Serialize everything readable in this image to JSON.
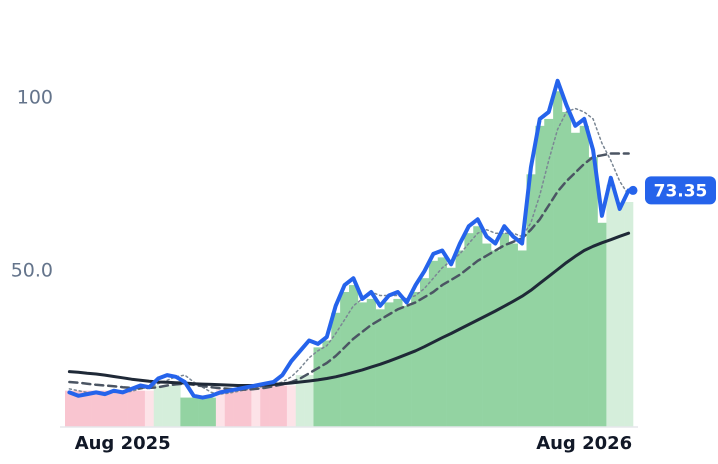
{
  "chart_data": {
    "type": "line",
    "categories": [
      null,
      null,
      null,
      null,
      null,
      null,
      "Aug 2025",
      null,
      null,
      null,
      null,
      null,
      null,
      null,
      null,
      null,
      null,
      null,
      null,
      null,
      null,
      null,
      null,
      null,
      null,
      null,
      null,
      null,
      null,
      null,
      null,
      null,
      null,
      null,
      null,
      null,
      null,
      null,
      null,
      null,
      null,
      null,
      null,
      null,
      null,
      null,
      null,
      null,
      null,
      null,
      null,
      null,
      null,
      null,
      null,
      null,
      null,
      null,
      "Aug 2026",
      null,
      null,
      null,
      null,
      null
    ],
    "ylim": [
      5,
      122
    ],
    "yticks": [
      {
        "value": 50,
        "label": "50.0"
      },
      100
    ],
    "bars": {
      "values": [
        15.5,
        15.5,
        15.5,
        15.5,
        15.5,
        15.5,
        15.5,
        15.5,
        15.5,
        15.5,
        17,
        17,
        17,
        13.5,
        13.5,
        13.5,
        13.5,
        16,
        16,
        16,
        16,
        17,
        17,
        17,
        17,
        17,
        20,
        20,
        28,
        30,
        38,
        44,
        46,
        41,
        42,
        39,
        41,
        42,
        40,
        44,
        48,
        53,
        54,
        51,
        56,
        61,
        63,
        58,
        56,
        61,
        58,
        56,
        78,
        92,
        94,
        102,
        96,
        90,
        92,
        83,
        64,
        75,
        70,
        70
      ],
      "colors": [
        "#f9c5d0",
        "#f9c5d0",
        "#f9c5d0",
        "#f9c5d0",
        "#f9c5d0",
        "#f9c5d0",
        "#f9c5d0",
        "#f9c5d0",
        "#f9c5d0",
        "#fde3e8",
        "#d5eedb",
        "#d5eedb",
        "#d5eedb",
        "#93d3a2",
        "#93d3a2",
        "#93d3a2",
        "#93d3a2",
        "#fde3e8",
        "#f9c5d0",
        "#f9c5d0",
        "#f9c5d0",
        "#fde3e8",
        "#f9c5d0",
        "#f9c5d0",
        "#f9c5d0",
        "#fde3e8",
        "#d5eedb",
        "#d5eedb",
        "#93d3a2",
        "#93d3a2",
        "#93d3a2",
        "#93d3a2",
        "#93d3a2",
        "#93d3a2",
        "#93d3a2",
        "#93d3a2",
        "#93d3a2",
        "#93d3a2",
        "#93d3a2",
        "#93d3a2",
        "#93d3a2",
        "#93d3a2",
        "#93d3a2",
        "#93d3a2",
        "#93d3a2",
        "#93d3a2",
        "#93d3a2",
        "#93d3a2",
        "#93d3a2",
        "#93d3a2",
        "#93d3a2",
        "#93d3a2",
        "#93d3a2",
        "#93d3a2",
        "#93d3a2",
        "#93d3a2",
        "#93d3a2",
        "#93d3a2",
        "#93d3a2",
        "#93d3a2",
        "#93d3a2",
        "#d5eedb",
        "#d5eedb",
        "#d5eedb"
      ]
    },
    "series": [
      {
        "color": "#2563eb",
        "style": "solid",
        "width": 4,
        "values": [
          15,
          14,
          14.5,
          15,
          14.5,
          15.5,
          15,
          16,
          17,
          16.5,
          19,
          20,
          19.5,
          18,
          14,
          13.5,
          14,
          15,
          15.5,
          16,
          16.5,
          17,
          17.5,
          18,
          20,
          24,
          27,
          30,
          29,
          31,
          40,
          46,
          48,
          42,
          44,
          40,
          43,
          44,
          41,
          46,
          50,
          55,
          56,
          52,
          58,
          63,
          65,
          60,
          58,
          63,
          60,
          58,
          80,
          94,
          96,
          105,
          98,
          92,
          94,
          85,
          66,
          77,
          68,
          73.35
        ]
      },
      {
        "color": "#1f2937",
        "style": "solid",
        "width": 3,
        "values": [
          21,
          20.8,
          20.5,
          20.3,
          20,
          19.6,
          19.2,
          18.8,
          18.5,
          18.2,
          18,
          17.9,
          17.8,
          17.7,
          17.5,
          17.4,
          17.3,
          17.2,
          17.1,
          17,
          17,
          17,
          17.1,
          17.3,
          17.5,
          17.7,
          18,
          18.3,
          18.6,
          19,
          19.5,
          20.1,
          20.8,
          21.5,
          22.3,
          23.1,
          24,
          25,
          26,
          27,
          28.2,
          29.5,
          30.8,
          32,
          33.3,
          34.6,
          35.9,
          37.2,
          38.5,
          39.9,
          41.3,
          42.8,
          44.5,
          46.5,
          48.5,
          50.5,
          52.5,
          54.3,
          56,
          57.2,
          58.2,
          59.1,
          60.1,
          61
        ]
      },
      {
        "color": "#4b5563",
        "style": "dashed",
        "width": 2.5,
        "values": [
          18,
          17.8,
          17.5,
          17.2,
          17,
          16.8,
          16.5,
          16.3,
          16.2,
          16.3,
          16.5,
          17,
          17.3,
          17.5,
          17.2,
          16.8,
          16.5,
          16.2,
          16,
          15.8,
          15.8,
          16,
          16.3,
          16.8,
          17.3,
          18,
          19,
          20.5,
          22,
          23.5,
          25.5,
          28,
          30.5,
          32.5,
          34.5,
          36,
          37.5,
          39,
          40,
          41,
          42.5,
          44,
          46,
          47.5,
          49,
          51,
          53,
          54.5,
          56,
          57.5,
          58.5,
          59.5,
          62,
          65,
          69,
          73,
          76,
          78.5,
          81,
          83,
          83.5,
          84,
          84,
          84
        ]
      },
      {
        "color": "#7b8794",
        "style": "dotted",
        "width": 1.5,
        "values": [
          16,
          15.5,
          15,
          14.8,
          14.8,
          15,
          15,
          15.3,
          16,
          16.5,
          17.5,
          18.5,
          19.5,
          20,
          18,
          16.5,
          15,
          14.5,
          14.8,
          15.3,
          15.8,
          16.3,
          16.8,
          17.3,
          18,
          19.5,
          22,
          25,
          27,
          28.5,
          32,
          36,
          40,
          42,
          44,
          43,
          43,
          43,
          42,
          43,
          45,
          48,
          51,
          53,
          55,
          58,
          61,
          62,
          61,
          61,
          61,
          60,
          64,
          72,
          82,
          91,
          96,
          97,
          96,
          94,
          87,
          82,
          76,
          72
        ]
      }
    ]
  }
}
